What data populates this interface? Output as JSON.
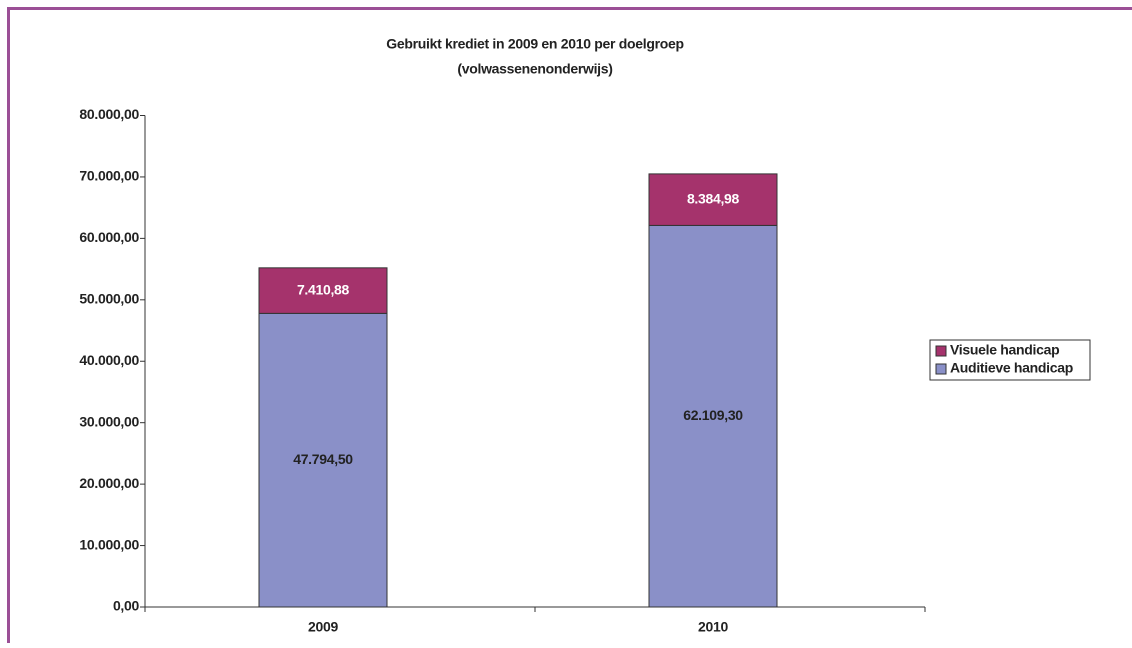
{
  "chart_data": {
    "type": "stacked-bar",
    "title": "Gebruikt krediet in 2009 en 2010 per doelgroep",
    "subtitle": "(volwassenenonderwijs)",
    "categories": [
      "2009",
      "2010"
    ],
    "series": [
      {
        "name": "Auditieve handicap",
        "color": "#8a90c8",
        "values": [
          47794.5,
          62109.3
        ],
        "value_labels": [
          "47.794,50",
          "62.109,30"
        ]
      },
      {
        "name": "Visuele handicap",
        "color": "#a5336c",
        "values": [
          7410.88,
          8384.98
        ],
        "value_labels": [
          "7.410,88",
          "8.384,98"
        ]
      }
    ],
    "ylim": [
      0,
      80000
    ],
    "yticks": [
      {
        "value": 0,
        "label": "0,00"
      },
      {
        "value": 10000,
        "label": "10.000,00"
      },
      {
        "value": 20000,
        "label": "20.000,00"
      },
      {
        "value": 30000,
        "label": "30.000,00"
      },
      {
        "value": 40000,
        "label": "40.000,00"
      },
      {
        "value": 50000,
        "label": "50.000,00"
      },
      {
        "value": 60000,
        "label": "60.000,00"
      },
      {
        "value": 70000,
        "label": "70.000,00"
      },
      {
        "value": 80000,
        "label": "80.000,00"
      }
    ],
    "grid": false,
    "legend": "right"
  }
}
